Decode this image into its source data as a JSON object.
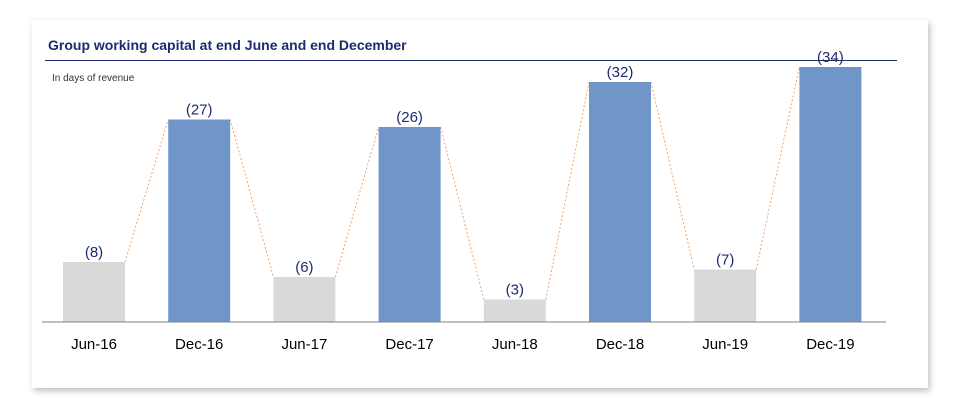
{
  "chart_data": {
    "type": "bar",
    "title": "Group working capital at end June and end December",
    "subtitle": "In days of revenue",
    "categories": [
      "Jun-16",
      "Dec-16",
      "Jun-17",
      "Dec-17",
      "Jun-18",
      "Dec-18",
      "Jun-19",
      "Dec-19"
    ],
    "values": [
      8,
      27,
      6,
      26,
      3,
      32,
      7,
      34
    ],
    "data_labels": [
      "(8)",
      "(27)",
      "(6)",
      "(26)",
      "(3)",
      "(32)",
      "(7)",
      "(34)"
    ],
    "ylim": [
      0,
      40
    ],
    "grid": false,
    "connector_lines": true,
    "colors": {
      "june": "#d9d9d9",
      "december": "#7096c9",
      "connector": "#f4a46a",
      "label": "#1f2a6e",
      "axis": "#808080"
    }
  }
}
